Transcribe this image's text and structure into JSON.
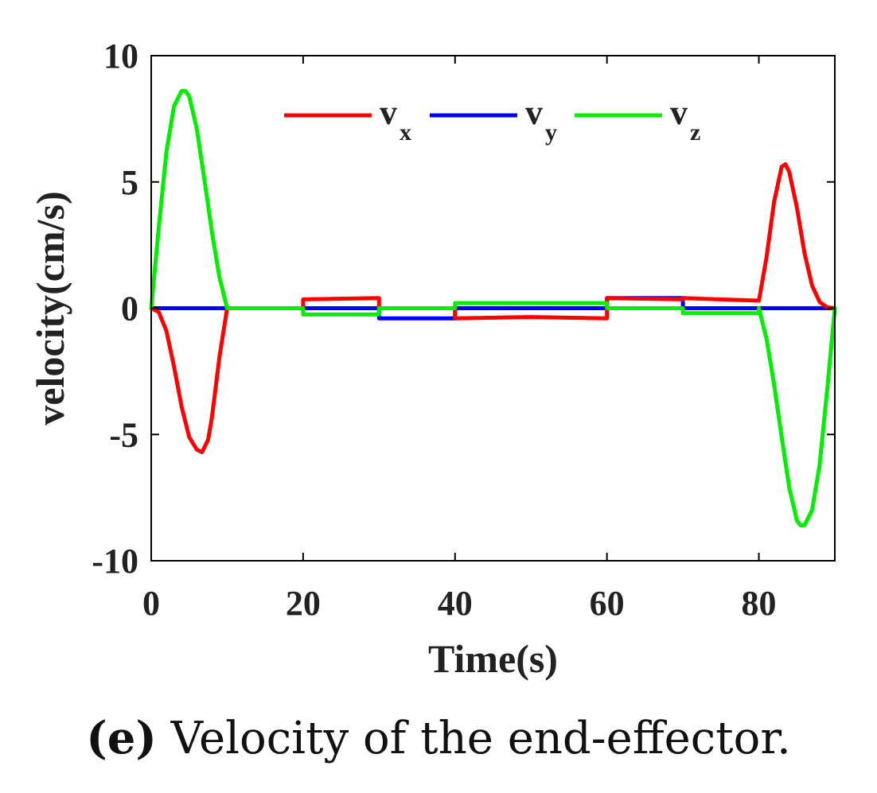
{
  "chart_data": {
    "type": "line",
    "title": "",
    "xlabel": "Time(s)",
    "ylabel": "velocity(cm/s)",
    "xlim": [
      0,
      90
    ],
    "ylim": [
      -10,
      10
    ],
    "xticks": [
      0,
      20,
      40,
      60,
      80
    ],
    "yticks": [
      10,
      5,
      0,
      -5,
      -10
    ],
    "xtick_labels": [
      "0",
      "20",
      "40",
      "60",
      "80"
    ],
    "ytick_labels": [
      "10",
      "5",
      "0",
      "-5",
      "-10"
    ],
    "grid": false,
    "legend_position": "top",
    "series": [
      {
        "name": "v",
        "subscript": "x",
        "color": "#ff0000",
        "x": [
          0,
          1,
          2,
          3,
          4,
          5,
          6,
          6.7,
          7.5,
          8,
          9,
          10,
          10,
          20,
          20,
          30,
          30,
          40,
          40,
          50,
          60,
          60,
          70,
          70,
          80,
          80,
          81,
          82,
          83,
          83.5,
          84,
          85,
          86,
          87,
          88,
          89,
          90
        ],
        "values": [
          0,
          -0.15,
          -0.9,
          -2.3,
          -3.9,
          -5.1,
          -5.6,
          -5.7,
          -5.2,
          -4.3,
          -1.9,
          0,
          0,
          0,
          0.35,
          0.4,
          0,
          0,
          -0.4,
          -0.35,
          -0.4,
          0.4,
          0.35,
          0.4,
          0.3,
          0.3,
          2.0,
          4.2,
          5.6,
          5.7,
          5.4,
          4.0,
          2.2,
          0.9,
          0.25,
          0.03,
          0
        ]
      },
      {
        "name": "v",
        "subscript": "y",
        "color": "#0000ff",
        "x": [
          0,
          20,
          20,
          30,
          30,
          40,
          40,
          60,
          60,
          70,
          70,
          90
        ],
        "values": [
          0,
          0,
          0,
          0,
          -0.4,
          -0.4,
          0,
          0,
          0.4,
          0.4,
          0,
          0
        ]
      },
      {
        "name": "v",
        "subscript": "z",
        "color": "#00ee00",
        "x": [
          0,
          1,
          2,
          3,
          4,
          4.5,
          5,
          6,
          7,
          8,
          9,
          10,
          10,
          20,
          20,
          30,
          30,
          40,
          40,
          60,
          60,
          70,
          70,
          80,
          80,
          81,
          82,
          83,
          84,
          85,
          85.5,
          86,
          87,
          88,
          89,
          90
        ],
        "values": [
          0,
          3.2,
          6.2,
          8.0,
          8.6,
          8.6,
          8.4,
          7.1,
          5.1,
          3.0,
          1.2,
          0,
          0,
          0,
          -0.25,
          -0.25,
          0,
          0,
          0.2,
          0.2,
          0,
          0,
          -0.2,
          -0.2,
          0,
          -1.2,
          -3.0,
          -5.1,
          -7.1,
          -8.4,
          -8.6,
          -8.6,
          -8.0,
          -6.2,
          -3.2,
          0
        ]
      }
    ]
  },
  "caption": {
    "label": "(e)",
    "text": " Velocity of the end-effector."
  }
}
